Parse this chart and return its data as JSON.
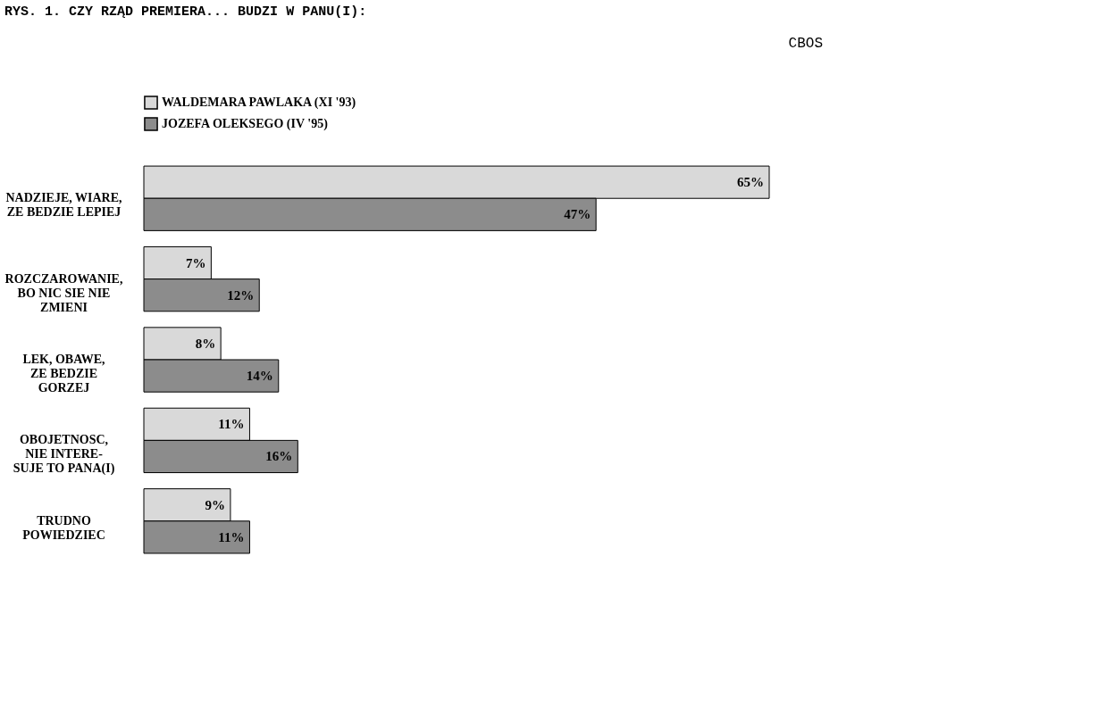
{
  "chart_data": {
    "type": "bar",
    "orientation": "horizontal",
    "title": "RYS. 1. CZY RZĄD PREMIERA... BUDZI W PANU(I):",
    "categories": [
      "NADZIEJE, WIARE,\nZE BEDZIE LEPIEJ",
      "ROZCZAROWANIE,\nBO NIC SIE NIE\nZMIENI",
      "LEK, OBAWE,\nZE BEDZIE\nGORZEJ",
      "OBOJETNOSC,\nNIE INTERE-\nSUJE TO PANA(I)",
      "TRUDNO\nPOWIEDZIEC"
    ],
    "series": [
      {
        "name": "WALDEMARA PAWLAKA (XI '93)",
        "color": "#d9d9d9",
        "values": [
          65,
          7,
          8,
          11,
          9
        ],
        "value_labels": [
          "65%",
          "7%",
          "8%",
          "11%",
          "9%"
        ]
      },
      {
        "name": "JOZEFA OLEKSEGO (IV '95)",
        "color": "#8c8c8c",
        "values": [
          47,
          12,
          14,
          16,
          11
        ],
        "value_labels": [
          "47%",
          "12%",
          "14%",
          "16%",
          "11%"
        ]
      }
    ],
    "legend": "top",
    "grid": false,
    "annotations": [
      "CBOS"
    ]
  }
}
